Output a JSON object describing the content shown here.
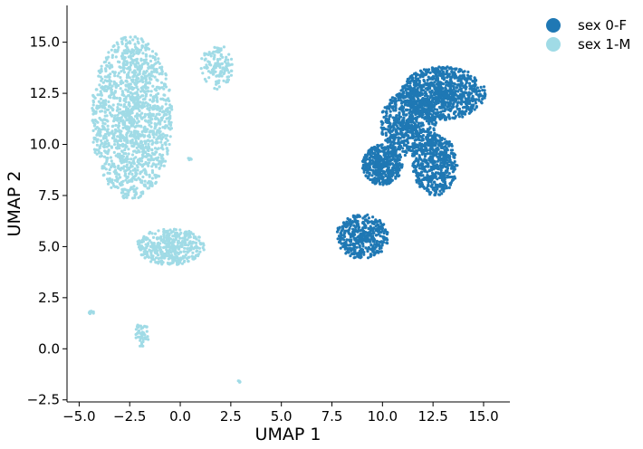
{
  "chart_data": {
    "type": "scatter",
    "xlabel": "UMAP 1",
    "ylabel": "UMAP 2",
    "xlim": [
      -5.6,
      16.3
    ],
    "ylim": [
      -2.6,
      16.8
    ],
    "xticks": [
      -5.0,
      -2.5,
      0.0,
      2.5,
      5.0,
      7.5,
      10.0,
      12.5,
      15.0
    ],
    "xtick_labels": [
      "−5.0",
      "−2.5",
      "0.0",
      "2.5",
      "5.0",
      "7.5",
      "10.0",
      "12.5",
      "15.0"
    ],
    "yticks": [
      -2.5,
      0.0,
      2.5,
      5.0,
      7.5,
      10.0,
      12.5,
      15.0
    ],
    "ytick_labels": [
      "−2.5",
      "0.0",
      "2.5",
      "5.0",
      "7.5",
      "10.0",
      "12.5",
      "15.0"
    ],
    "grid": false,
    "legend_position": "outside-top-right",
    "series": [
      {
        "name": "sex 0-F",
        "color": "#1f78b4",
        "clusters": [
          {
            "cx": 13.0,
            "cy": 12.5,
            "rx": 2.1,
            "ry": 1.3,
            "n": 900
          },
          {
            "cx": 11.3,
            "cy": 11.0,
            "rx": 1.4,
            "ry": 1.6,
            "n": 650
          },
          {
            "cx": 10.0,
            "cy": 9.0,
            "rx": 1.0,
            "ry": 1.0,
            "n": 450
          },
          {
            "cx": 12.6,
            "cy": 9.0,
            "rx": 1.1,
            "ry": 1.5,
            "n": 500
          },
          {
            "cx": 9.0,
            "cy": 5.5,
            "rx": 1.3,
            "ry": 1.1,
            "n": 420
          }
        ]
      },
      {
        "name": "sex 1-M",
        "color": "#a0dbe6",
        "clusters": [
          {
            "cx": -2.4,
            "cy": 11.3,
            "rx": 2.0,
            "ry": 4.0,
            "n": 1500
          },
          {
            "cx": -0.5,
            "cy": 5.0,
            "rx": 1.7,
            "ry": 0.9,
            "n": 420
          },
          {
            "cx": 1.8,
            "cy": 13.8,
            "rx": 0.8,
            "ry": 1.1,
            "n": 130
          },
          {
            "cx": -1.9,
            "cy": 0.7,
            "rx": 0.35,
            "ry": 0.6,
            "n": 45
          },
          {
            "cx": -4.4,
            "cy": 1.8,
            "rx": 0.15,
            "ry": 0.1,
            "n": 10
          },
          {
            "cx": 2.9,
            "cy": -1.6,
            "rx": 0.06,
            "ry": 0.06,
            "n": 4
          },
          {
            "cx": 0.5,
            "cy": 9.3,
            "rx": 0.12,
            "ry": 0.06,
            "n": 5
          }
        ]
      }
    ]
  }
}
